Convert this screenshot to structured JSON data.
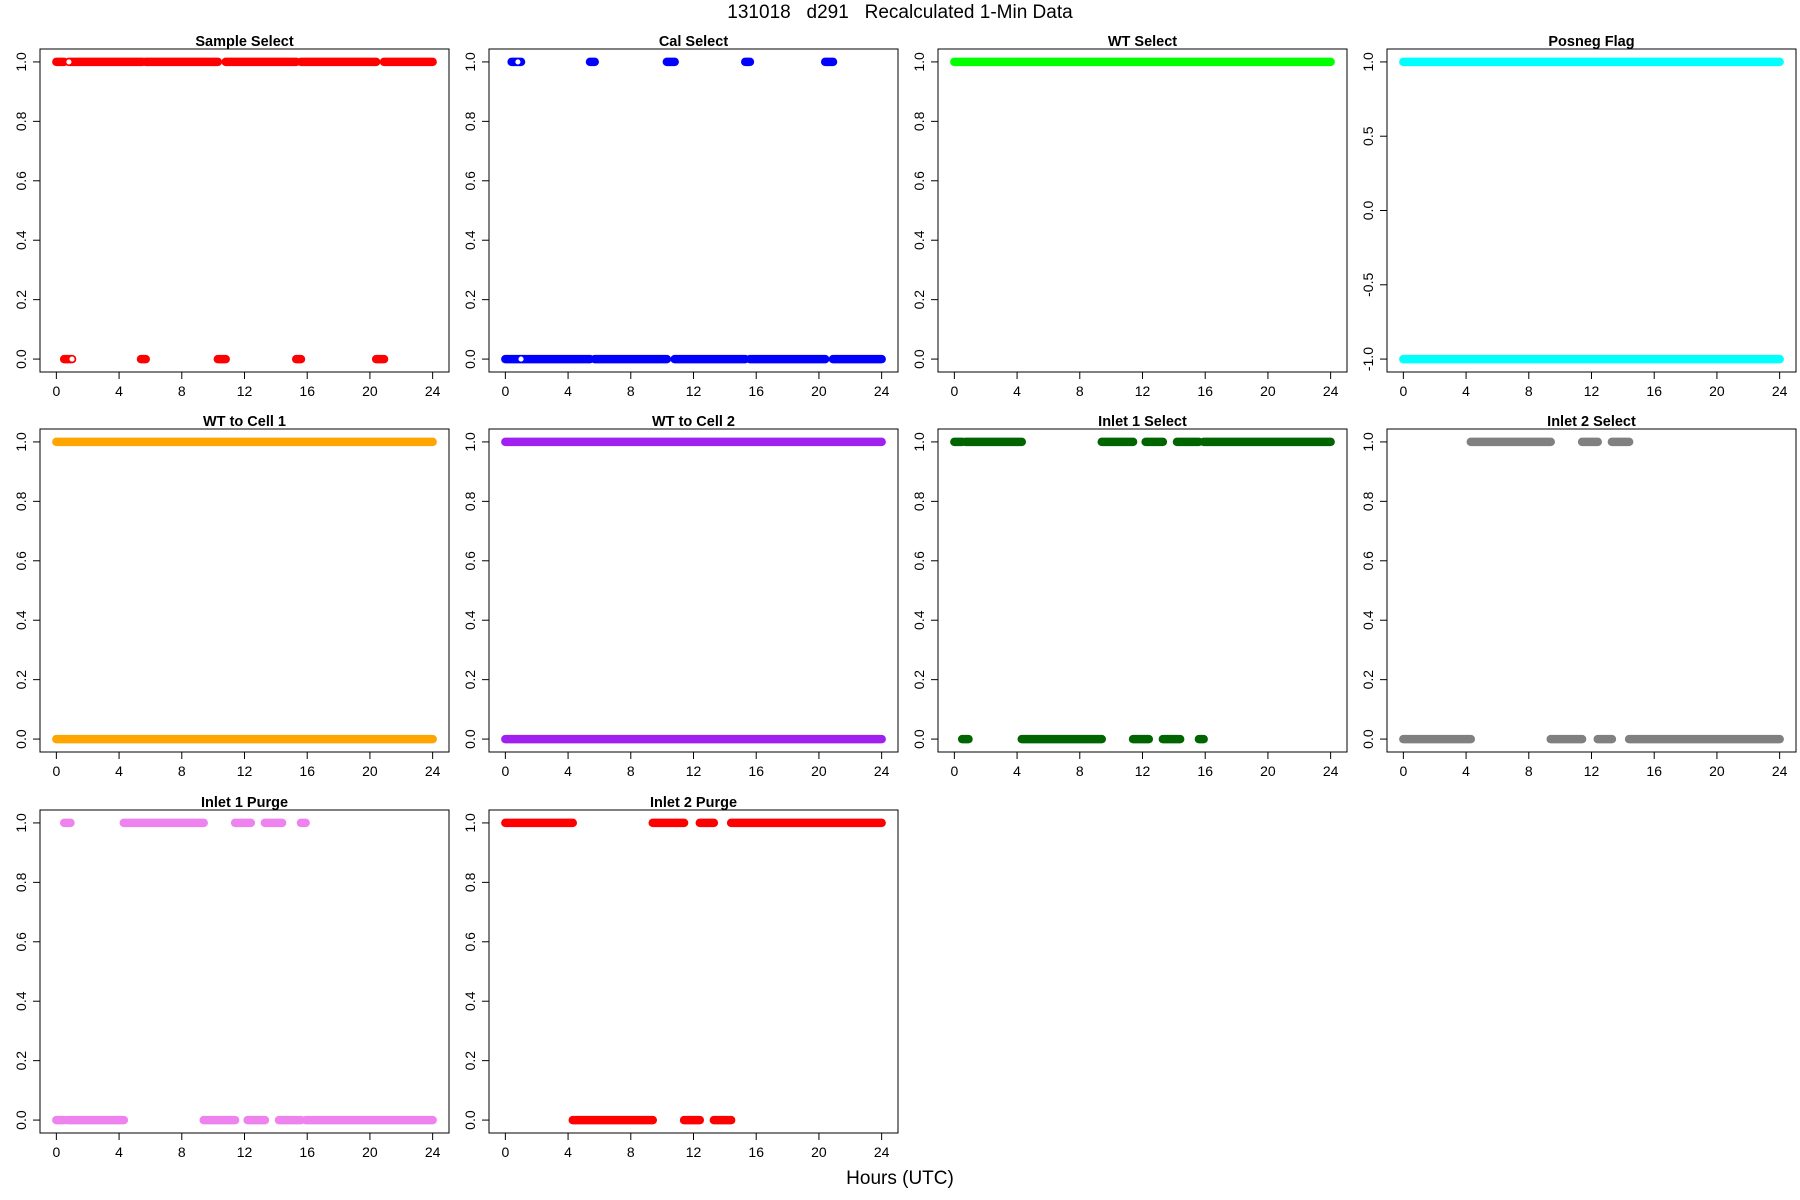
{
  "page": {
    "title": "131018   d291   Recalculated 1-Min Data",
    "xlabel": "Hours (UTC)"
  },
  "chart_data": [
    {
      "type": "scatter",
      "title": "Sample Select",
      "color": "#ff0000",
      "xlim": [
        0,
        24
      ],
      "xticks": [
        0,
        4,
        8,
        12,
        16,
        20,
        24
      ],
      "ylim": [
        0,
        1
      ],
      "yticks": [
        "0.0",
        "0.2",
        "0.4",
        "0.6",
        "0.8",
        "1.0"
      ],
      "series": [
        {
          "y": 1,
          "segments": [
            [
              0,
              0.5
            ],
            [
              0.8,
              5.5
            ],
            [
              5.7,
              10.3
            ],
            [
              10.8,
              15.3
            ],
            [
              15.6,
              20.4
            ],
            [
              20.9,
              24
            ]
          ]
        },
        {
          "y": 0,
          "segments": [
            [
              0.5,
              1.0
            ],
            [
              5.4,
              5.7
            ],
            [
              10.3,
              10.8
            ],
            [
              15.3,
              15.6
            ],
            [
              20.4,
              20.9
            ]
          ]
        }
      ],
      "open_points": [
        [
          0.8,
          1
        ],
        [
          1.0,
          0
        ]
      ]
    },
    {
      "type": "scatter",
      "title": "Cal Select",
      "color": "#0000ff",
      "xlim": [
        0,
        24
      ],
      "xticks": [
        0,
        4,
        8,
        12,
        16,
        20,
        24
      ],
      "ylim": [
        0,
        1
      ],
      "yticks": [
        "0.0",
        "0.2",
        "0.4",
        "0.6",
        "0.8",
        "1.0"
      ],
      "series": [
        {
          "y": 1,
          "segments": [
            [
              0.4,
              1.0
            ],
            [
              5.4,
              5.7
            ],
            [
              10.3,
              10.8
            ],
            [
              15.3,
              15.6
            ],
            [
              20.4,
              20.9
            ]
          ]
        },
        {
          "y": 0,
          "segments": [
            [
              0,
              5.4
            ],
            [
              5.7,
              10.3
            ],
            [
              10.8,
              15.3
            ],
            [
              15.6,
              20.4
            ],
            [
              20.9,
              24
            ]
          ]
        }
      ],
      "open_points": [
        [
          0.8,
          1
        ],
        [
          1.0,
          0
        ]
      ]
    },
    {
      "type": "scatter",
      "title": "WT Select",
      "color": "#00ff00",
      "xlim": [
        0,
        24
      ],
      "xticks": [
        0,
        4,
        8,
        12,
        16,
        20,
        24
      ],
      "ylim": [
        0,
        1
      ],
      "yticks": [
        "0.0",
        "0.2",
        "0.4",
        "0.6",
        "0.8",
        "1.0"
      ],
      "series": [
        {
          "y": 1,
          "segments": [
            [
              0,
              24
            ]
          ]
        }
      ]
    },
    {
      "type": "scatter",
      "title": "Posneg Flag",
      "color": "#00ffff",
      "xlim": [
        0,
        24
      ],
      "xticks": [
        0,
        4,
        8,
        12,
        16,
        20,
        24
      ],
      "ylim": [
        -1,
        1
      ],
      "yticks": [
        "-1.0",
        "-0.5",
        "0.0",
        "0.5",
        "1.0"
      ],
      "series": [
        {
          "y": 1,
          "segments": [
            [
              0,
              24
            ]
          ]
        },
        {
          "y": -1,
          "segments": [
            [
              0,
              24
            ]
          ]
        }
      ]
    },
    {
      "type": "scatter",
      "title": "WT to Cell 1",
      "color": "#ffa500",
      "xlim": [
        0,
        24
      ],
      "xticks": [
        0,
        4,
        8,
        12,
        16,
        20,
        24
      ],
      "ylim": [
        0,
        1
      ],
      "yticks": [
        "0.0",
        "0.2",
        "0.4",
        "0.6",
        "0.8",
        "1.0"
      ],
      "series": [
        {
          "y": 1,
          "segments": [
            [
              0,
              24
            ]
          ]
        },
        {
          "y": 0,
          "segments": [
            [
              0,
              24
            ]
          ]
        }
      ]
    },
    {
      "type": "scatter",
      "title": "WT to Cell 2",
      "color": "#a020f0",
      "xlim": [
        0,
        24
      ],
      "xticks": [
        0,
        4,
        8,
        12,
        16,
        20,
        24
      ],
      "ylim": [
        0,
        1
      ],
      "yticks": [
        "0.0",
        "0.2",
        "0.4",
        "0.6",
        "0.8",
        "1.0"
      ],
      "series": [
        {
          "y": 1,
          "segments": [
            [
              0,
              24
            ]
          ]
        },
        {
          "y": 0,
          "segments": [
            [
              0,
              24
            ]
          ]
        }
      ]
    },
    {
      "type": "scatter",
      "title": "Inlet 1 Select",
      "color": "#006400",
      "xlim": [
        0,
        24
      ],
      "xticks": [
        0,
        4,
        8,
        12,
        16,
        20,
        24
      ],
      "ylim": [
        0,
        1
      ],
      "yticks": [
        "0.0",
        "0.2",
        "0.4",
        "0.6",
        "0.8",
        "1.0"
      ],
      "series": [
        {
          "y": 1,
          "segments": [
            [
              0,
              0.5
            ],
            [
              0.7,
              4.3
            ],
            [
              9.4,
              11.4
            ],
            [
              12.2,
              13.3
            ],
            [
              14.2,
              15.6
            ],
            [
              15.9,
              24
            ]
          ]
        },
        {
          "y": 0,
          "segments": [
            [
              0.5,
              0.9
            ],
            [
              4.3,
              9.4
            ],
            [
              11.4,
              12.4
            ],
            [
              13.3,
              14.4
            ],
            [
              15.6,
              15.9
            ]
          ]
        }
      ]
    },
    {
      "type": "scatter",
      "title": "Inlet 2 Select",
      "color": "#808080",
      "xlim": [
        0,
        24
      ],
      "xticks": [
        0,
        4,
        8,
        12,
        16,
        20,
        24
      ],
      "ylim": [
        0,
        1
      ],
      "yticks": [
        "0.0",
        "0.2",
        "0.4",
        "0.6",
        "0.8",
        "1.0"
      ],
      "series": [
        {
          "y": 1,
          "segments": [
            [
              4.3,
              9.4
            ],
            [
              11.4,
              12.4
            ],
            [
              13.3,
              14.4
            ]
          ]
        },
        {
          "y": 0,
          "segments": [
            [
              0,
              4.3
            ],
            [
              9.4,
              11.4
            ],
            [
              12.4,
              13.3
            ],
            [
              14.4,
              24
            ]
          ]
        }
      ]
    },
    {
      "type": "scatter",
      "title": "Inlet 1 Purge",
      "color": "#ee82ee",
      "xlim": [
        0,
        24
      ],
      "xticks": [
        0,
        4,
        8,
        12,
        16,
        20,
        24
      ],
      "ylim": [
        0,
        1
      ],
      "yticks": [
        "0.0",
        "0.2",
        "0.4",
        "0.6",
        "0.8",
        "1.0"
      ],
      "series": [
        {
          "y": 1,
          "segments": [
            [
              0.5,
              0.9
            ],
            [
              4.3,
              9.4
            ],
            [
              11.4,
              12.4
            ],
            [
              13.3,
              14.4
            ],
            [
              15.6,
              15.9
            ]
          ]
        },
        {
          "y": 0,
          "segments": [
            [
              0,
              0.5
            ],
            [
              0.7,
              4.3
            ],
            [
              9.4,
              11.4
            ],
            [
              12.2,
              13.3
            ],
            [
              14.2,
              15.6
            ],
            [
              15.9,
              24
            ]
          ]
        }
      ]
    },
    {
      "type": "scatter",
      "title": "Inlet 2 Purge",
      "color": "#ff0000",
      "xlim": [
        0,
        24
      ],
      "xticks": [
        0,
        4,
        8,
        12,
        16,
        20,
        24
      ],
      "ylim": [
        0,
        1
      ],
      "yticks": [
        "0.0",
        "0.2",
        "0.4",
        "0.6",
        "0.8",
        "1.0"
      ],
      "series": [
        {
          "y": 1,
          "segments": [
            [
              0,
              4.3
            ],
            [
              9.4,
              11.4
            ],
            [
              12.4,
              13.3
            ],
            [
              14.4,
              24
            ]
          ]
        },
        {
          "y": 0,
          "segments": [
            [
              4.3,
              9.4
            ],
            [
              11.4,
              12.4
            ],
            [
              13.3,
              14.4
            ]
          ]
        }
      ]
    }
  ]
}
